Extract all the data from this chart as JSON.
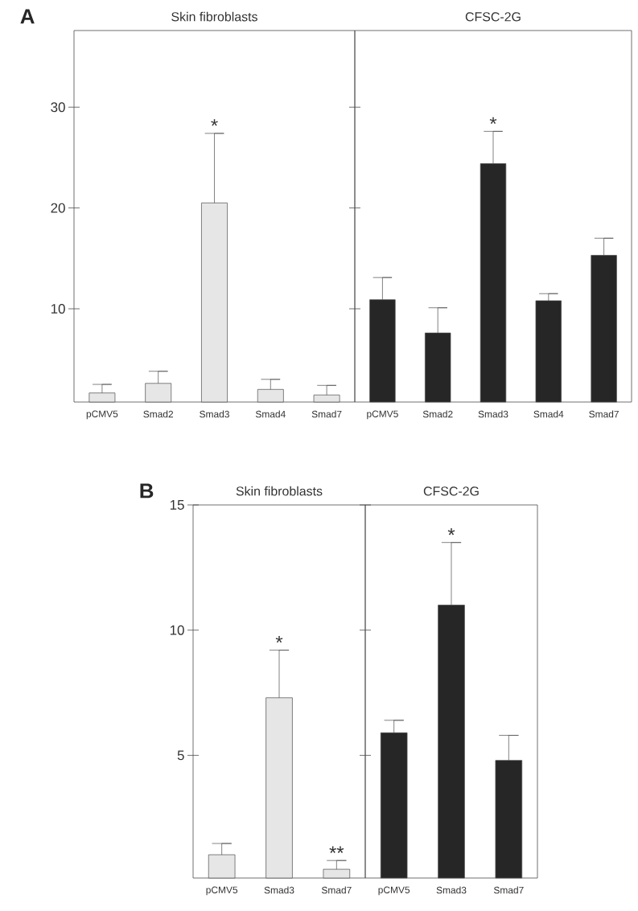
{
  "chart_data": [
    {
      "type": "bar",
      "title": "Skin fibroblasts",
      "categories": [
        "pCMV5",
        "Smad2",
        "Smad3",
        "Smad4",
        "Smad7"
      ],
      "values": [
        1.65,
        2.6,
        20.5,
        2.0,
        1.45
      ],
      "errors": [
        [
          1.65,
          2.5
        ],
        [
          2.6,
          3.8
        ],
        [
          20.5,
          27.4
        ],
        [
          2.0,
          3.0
        ],
        [
          1.45,
          2.4
        ]
      ],
      "color": "#e6e6e6",
      "ylim": [
        0.75,
        37.6
      ],
      "yticks": [
        10,
        20,
        30
      ],
      "annotations": [
        "A",
        {
          "text": "*",
          "x": "Smad3",
          "y": 27.4
        }
      ]
    },
    {
      "type": "bar",
      "title": "CFSC-2G",
      "categories": [
        "pCMV5",
        "Smad2",
        "Smad3",
        "Smad4",
        "Smad7"
      ],
      "values": [
        10.9,
        7.6,
        24.4,
        10.8,
        15.3
      ],
      "errors": [
        [
          10.9,
          13.1
        ],
        [
          7.6,
          10.1
        ],
        [
          24.4,
          27.6
        ],
        [
          10.8,
          11.5
        ],
        [
          15.3,
          17.0
        ]
      ],
      "color": "#262626",
      "ylim": [
        0.75,
        37.6
      ],
      "yticks": [
        10,
        20,
        30
      ],
      "tick_labels": "x",
      "annotations": [
        {
          "text": "*",
          "x": "Smad3",
          "y": 27.6
        }
      ]
    },
    {
      "type": "bar",
      "title": "Skin fibroblasts",
      "categories": [
        "pCMV5",
        "Smad3",
        "Smad7"
      ],
      "values": [
        1.03,
        7.3,
        0.45
      ],
      "errors": [
        [
          1.03,
          1.48
        ],
        [
          7.3,
          9.2
        ],
        [
          0.45,
          0.8
        ]
      ],
      "color": "#e6e6e6",
      "ylim": [
        0.1,
        15
      ],
      "yticks": [
        5,
        10,
        15
      ],
      "annotations": [
        "B",
        {
          "text": "*",
          "x": "Smad3",
          "y": 9.2
        },
        {
          "text": "**",
          "x": "Smad7",
          "y": 0.8
        }
      ]
    },
    {
      "type": "bar",
      "title": "CFSC-2G",
      "categories": [
        "pCMV5",
        "Smad3",
        "Smad7"
      ],
      "values": [
        5.9,
        11.0,
        4.8
      ],
      "errors": [
        [
          5.9,
          6.4
        ],
        [
          11.0,
          13.5
        ],
        [
          4.8,
          5.8
        ]
      ],
      "color": "#262626",
      "ylim": [
        0.1,
        15
      ],
      "yticks": [
        5,
        10,
        15
      ],
      "tick_labels": "x",
      "annotations": [
        {
          "text": "*",
          "x": "Smad3",
          "y": 13.5
        }
      ]
    }
  ]
}
